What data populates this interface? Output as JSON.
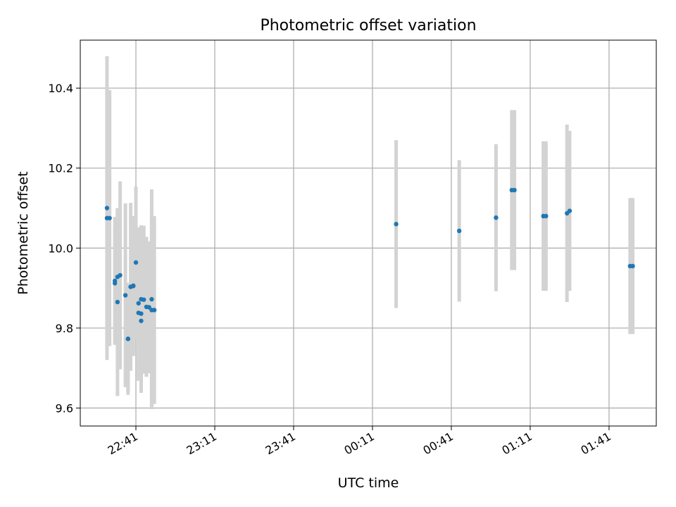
{
  "chart_data": {
    "type": "scatter",
    "title": "Photometric offset variation",
    "xlabel": "UTC time",
    "ylabel": "Photometric offset",
    "x_ticks": [
      "22:41",
      "23:11",
      "23:41",
      "00:11",
      "00:41",
      "01:11",
      "01:41"
    ],
    "x_tick_times": [
      "22:41",
      "23:11",
      "23:41",
      "00:11",
      "00:41",
      "01:11",
      "01:41"
    ],
    "x_range": [
      "22:20",
      "01:58"
    ],
    "y_ticks": [
      "9.6",
      "9.8",
      "10.0",
      "10.2",
      "10.4"
    ],
    "ylim": [
      9.555,
      10.52
    ],
    "grid": true,
    "legend": "none",
    "colors": {
      "marker": "#1f77b4",
      "error_bar": "#d3d3d3",
      "grid": "#b0b0b0"
    },
    "points": [
      {
        "time": "22:30",
        "y": 10.1,
        "err": 0.38
      },
      {
        "time": "22:30",
        "y": 10.075,
        "err": 0.325
      },
      {
        "time": "22:31",
        "y": 10.075,
        "err": 0.32
      },
      {
        "time": "22:33",
        "y": 9.912,
        "err": 0.14
      },
      {
        "time": "22:33",
        "y": 9.918,
        "err": 0.16
      },
      {
        "time": "22:34",
        "y": 9.928,
        "err": 0.17
      },
      {
        "time": "22:34",
        "y": 9.865,
        "err": 0.235
      },
      {
        "time": "22:35",
        "y": 9.932,
        "err": 0.235
      },
      {
        "time": "22:37",
        "y": 9.882,
        "err": 0.23
      },
      {
        "time": "22:38",
        "y": 9.773,
        "err": 0.135
      },
      {
        "time": "22:38",
        "y": 9.773,
        "err": 0.14
      },
      {
        "time": "22:39",
        "y": 9.903,
        "err": 0.21
      },
      {
        "time": "22:40",
        "y": 9.905,
        "err": 0.175
      },
      {
        "time": "22:40",
        "y": 9.906,
        "err": 0.165
      },
      {
        "time": "22:41",
        "y": 9.964,
        "err": 0.19
      },
      {
        "time": "22:42",
        "y": 9.862,
        "err": 0.19
      },
      {
        "time": "22:42",
        "y": 9.838,
        "err": 0.17
      },
      {
        "time": "22:43",
        "y": 9.836,
        "err": 0.185
      },
      {
        "time": "22:43",
        "y": 9.818,
        "err": 0.18
      },
      {
        "time": "22:43",
        "y": 9.872,
        "err": 0.185
      },
      {
        "time": "22:44",
        "y": 9.871,
        "err": 0.185
      },
      {
        "time": "22:45",
        "y": 9.853,
        "err": 0.175
      },
      {
        "time": "22:46",
        "y": 9.852,
        "err": 0.165
      },
      {
        "time": "22:47",
        "y": 9.872,
        "err": 0.275
      },
      {
        "time": "22:47",
        "y": 9.845,
        "err": 0.24
      },
      {
        "time": "22:48",
        "y": 9.845,
        "err": 0.235
      },
      {
        "time": "00:20",
        "y": 10.06,
        "err": 0.21
      },
      {
        "time": "00:44",
        "y": 10.043,
        "err": 0.177
      },
      {
        "time": "00:58",
        "y": 10.076,
        "err": 0.184
      },
      {
        "time": "01:04",
        "y": 10.145,
        "err": 0.2
      },
      {
        "time": "01:05",
        "y": 10.145,
        "err": 0.2
      },
      {
        "time": "01:16",
        "y": 10.08,
        "err": 0.187
      },
      {
        "time": "01:17",
        "y": 10.08,
        "err": 0.187
      },
      {
        "time": "01:25",
        "y": 10.087,
        "err": 0.222
      },
      {
        "time": "01:26",
        "y": 10.093,
        "err": 0.2
      },
      {
        "time": "01:49",
        "y": 9.955,
        "err": 0.17
      },
      {
        "time": "01:50",
        "y": 9.955,
        "err": 0.17
      }
    ]
  }
}
